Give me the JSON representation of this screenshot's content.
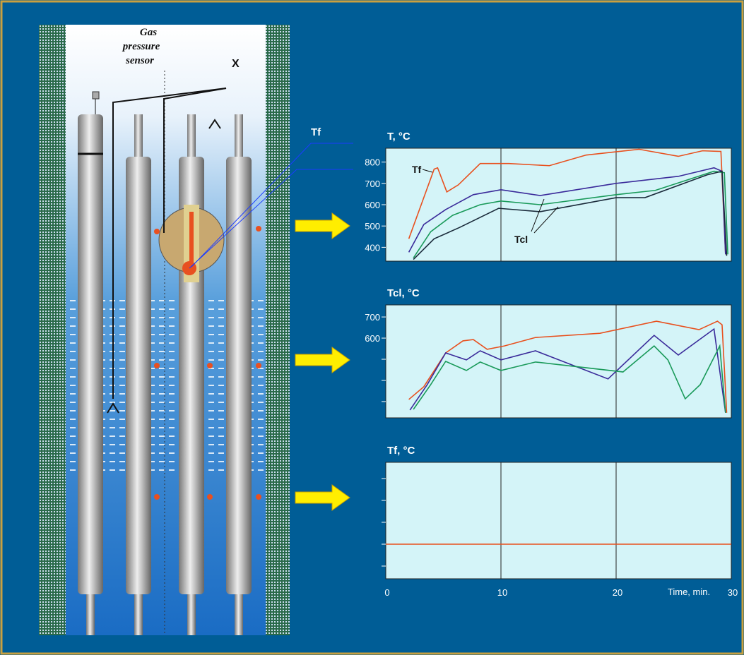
{
  "diagram": {
    "sensor_label": [
      "Gas",
      "pressure",
      "sensor"
    ],
    "x_label": "X",
    "tf_label": "Tf"
  },
  "chart_data": [
    {
      "type": "line",
      "title": "T, °C",
      "xlim": [
        0,
        30
      ],
      "vlines": [
        10,
        20
      ],
      "ylim": [
        335,
        865
      ],
      "yticks": [
        400,
        500,
        600,
        700,
        800
      ],
      "annotations": [
        "Tf",
        "Tcl"
      ],
      "series": [
        {
          "color": "#e8501e",
          "x": [
            2,
            3.3,
            4.2,
            4.5,
            5.3,
            6.3,
            8.2,
            10.7,
            14.2,
            17.4,
            22,
            25.4,
            27.5,
            29.1,
            29.5
          ],
          "values": [
            440,
            633,
            767,
            773,
            660,
            693,
            793,
            793,
            783,
            833,
            860,
            827,
            853,
            850,
            367
          ]
        },
        {
          "color": "#3a2a9a",
          "x": [
            2,
            3.3,
            5.2,
            7.6,
            10,
            13.4,
            20,
            25.4,
            28.5,
            29.2,
            29.5
          ],
          "values": [
            377,
            507,
            577,
            647,
            670,
            643,
            700,
            733,
            773,
            757,
            367
          ]
        },
        {
          "color": "#1a9a5a",
          "x": [
            2.4,
            3.9,
            5.8,
            8.2,
            10,
            13.4,
            20,
            23.4,
            28.5,
            29.4,
            29.7
          ],
          "values": [
            350,
            473,
            550,
            600,
            617,
            600,
            647,
            667,
            757,
            750,
            367
          ]
        },
        {
          "color": "#1a2a3a",
          "x": [
            2.4,
            4.2,
            6.4,
            9.8,
            13.4,
            20,
            22.5,
            27.9,
            29.2,
            29.6
          ],
          "values": [
            343,
            440,
            493,
            583,
            567,
            633,
            633,
            740,
            757,
            360
          ]
        }
      ]
    },
    {
      "type": "line",
      "title": "Tcl, °C",
      "xlim": [
        0,
        30
      ],
      "vlines": [
        10,
        20
      ],
      "ylim": [
        223,
        757
      ],
      "yticks": [
        600,
        700
      ],
      "minor_yticks": [
        300,
        400,
        500
      ],
      "series": [
        {
          "color": "#e8501e",
          "x": [
            2,
            3.3,
            5.2,
            6.7,
            7.6,
            8.8,
            10.3,
            13,
            18.6,
            23.5,
            27.2,
            28.8,
            29.2,
            29.6
          ],
          "values": [
            310,
            370,
            530,
            587,
            593,
            547,
            563,
            603,
            623,
            680,
            640,
            680,
            663,
            247
          ]
        },
        {
          "color": "#3a2a9a",
          "x": [
            2.1,
            3.6,
            5.2,
            7,
            8.2,
            10,
            13,
            19.3,
            23.3,
            25.4,
            28.5,
            29.5
          ],
          "values": [
            260,
            380,
            530,
            497,
            540,
            497,
            540,
            407,
            613,
            520,
            643,
            247
          ]
        },
        {
          "color": "#1a9a5a",
          "x": [
            2.4,
            3.9,
            5.2,
            7,
            8.2,
            10,
            13,
            20.6,
            23.3,
            24.5,
            26,
            27.3,
            29,
            29.5
          ],
          "values": [
            263,
            380,
            490,
            447,
            487,
            447,
            487,
            440,
            563,
            497,
            313,
            380,
            563,
            247
          ]
        }
      ]
    },
    {
      "type": "line",
      "title": "Tf, °C",
      "xlim": [
        0,
        30
      ],
      "vlines": [
        10,
        20
      ],
      "ylim": [
        0.42,
        5.74
      ],
      "minor_yticks": [
        1,
        2,
        3,
        4,
        5
      ],
      "xticks": [
        0,
        10,
        20,
        30
      ],
      "xlabel": "Time, min.",
      "series": [
        {
          "color": "#e8501e",
          "x": [
            0,
            30
          ],
          "values": [
            2,
            2
          ]
        }
      ]
    }
  ]
}
